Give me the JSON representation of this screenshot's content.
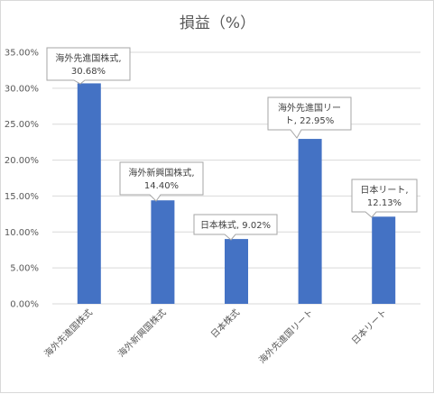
{
  "chart_data": {
    "type": "bar",
    "title": "損益（%）",
    "categories": [
      "海外先進国株式",
      "海外新興国株式",
      "日本株式",
      "海外先進国リート",
      "日本リート"
    ],
    "values": [
      30.68,
      14.4,
      9.02,
      22.95,
      12.13
    ],
    "data_labels": [
      [
        "海外先進国株式,",
        "30.68%"
      ],
      [
        "海外新興国株式,",
        "14.40%"
      ],
      [
        "日本株式, 9.02%"
      ],
      [
        "海外先進国リー",
        "ト, 22.95%"
      ],
      [
        "日本リート,",
        "12.13%"
      ]
    ],
    "yticks": [
      "0.00%",
      "5.00%",
      "10.00%",
      "15.00%",
      "20.00%",
      "25.00%",
      "30.00%",
      "35.00%"
    ],
    "ylim": [
      0,
      35
    ],
    "xlabel": "",
    "ylabel": "",
    "grid": true,
    "legend": "none",
    "bar_color": "#4472c4"
  }
}
